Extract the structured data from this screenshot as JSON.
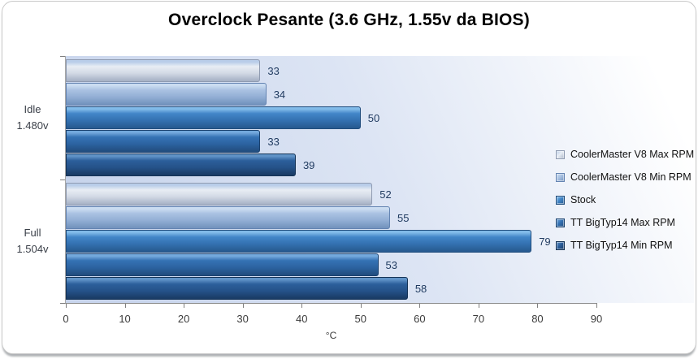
{
  "title": "Overclock Pesante (3.6 GHz, 1.55v da BIOS)",
  "chart_data": {
    "type": "bar",
    "orientation": "horizontal",
    "title": "Overclock Pesante (3.6 GHz, 1.55v da BIOS)",
    "categories": [
      {
        "line1": "Idle",
        "line2": "1.480v"
      },
      {
        "line1": "Full",
        "line2": "1.504v"
      }
    ],
    "series": [
      {
        "name": "CoolerMaster V8 Max RPM",
        "values": [
          33,
          52
        ],
        "color": {
          "hl": "#b9cde9",
          "body": "#e8edf4",
          "body2": "#d2d9e5",
          "dark": "#a9b4c7",
          "border": "#8f9bb1"
        }
      },
      {
        "name": "CoolerMaster V8 Min RPM",
        "values": [
          34,
          55
        ],
        "color": {
          "hl": "#cadcf1",
          "body": "#aac2e2",
          "body2": "#93afd5",
          "dark": "#7494be",
          "border": "#6484b2"
        }
      },
      {
        "name": "Stock",
        "values": [
          50,
          79
        ],
        "color": {
          "hl": "#82bbe9",
          "body": "#4286c8",
          "body2": "#3471b1",
          "dark": "#285b91",
          "border": "#204d7d"
        }
      },
      {
        "name": "TT BigTyp14 Max RPM",
        "values": [
          33,
          53
        ],
        "color": {
          "hl": "#74a9dd",
          "body": "#3572b4",
          "body2": "#2c63a1",
          "dark": "#224e80",
          "border": "#1b426f"
        }
      },
      {
        "name": "TT BigTyp14 Min RPM",
        "values": [
          39,
          58
        ],
        "color": {
          "hl": "#6093c7",
          "body": "#2c5f9b",
          "body2": "#255289",
          "dark": "#1a3c66",
          "border": "#153356"
        }
      }
    ],
    "xlabel": "°C",
    "xlim": [
      0,
      90
    ],
    "xticks": [
      0,
      10,
      20,
      30,
      40,
      50,
      60,
      70,
      80,
      90
    ],
    "grid": false,
    "legend_position": "right",
    "plot_background": {
      "from": "#ffffff",
      "mid": "#dde5f4",
      "to": "#c7d4ec"
    },
    "data_label_color": "#1f3a5f"
  }
}
